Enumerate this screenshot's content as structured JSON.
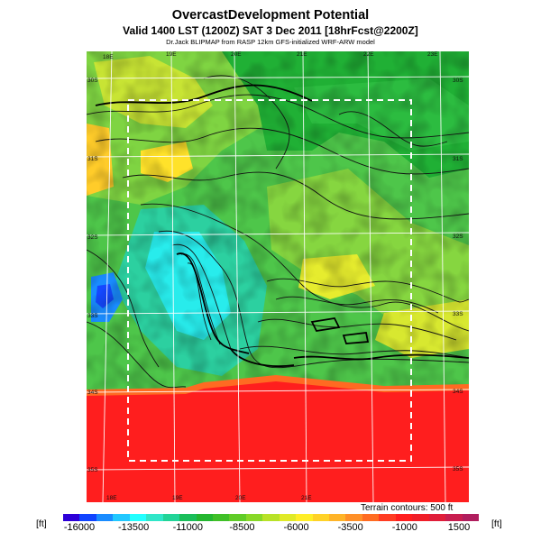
{
  "header": {
    "title": "OvercastDevelopment Potential",
    "valid_line": "Valid 1400 LST (1200Z) SAT 3 Dec 2011 [18hrFcst@2200Z]",
    "source_line": "Dr.Jack BLIPMAP from RASP 12km GFS-initialized WRF-ARW model"
  },
  "map": {
    "lon_labels": [
      "18E",
      "19E",
      "20E",
      "21E",
      "22E",
      "23E"
    ],
    "lat_labels": [
      "30S",
      "31S",
      "32S",
      "33S",
      "34S",
      "35S"
    ],
    "domain_box": "dashed-white",
    "land_scheme": "green-yellow-cyan (negative potential)",
    "ocean_scheme": "red (positive potential)"
  },
  "legend": {
    "terrain_note": "Terrain contours: 500 ft",
    "unit": "[ft]",
    "tick_labels": [
      "-16000",
      "-13500",
      "-11000",
      "-8500",
      "-6000",
      "-3500",
      "-1000",
      "1500"
    ],
    "colors": [
      "#2d00d8",
      "#1144ff",
      "#1a8cff",
      "#22c8ff",
      "#22ffff",
      "#30e6c8",
      "#22d498",
      "#1abe5a",
      "#24b630",
      "#40c028",
      "#60cc28",
      "#88d828",
      "#b8e228",
      "#e0ea28",
      "#ffee28",
      "#ffd228",
      "#ffb428",
      "#ff9028",
      "#ff6c22",
      "#ff3c22",
      "#ff1e1e",
      "#f01e28",
      "#e01e3a",
      "#c81e50",
      "#b01e5e"
    ]
  }
}
